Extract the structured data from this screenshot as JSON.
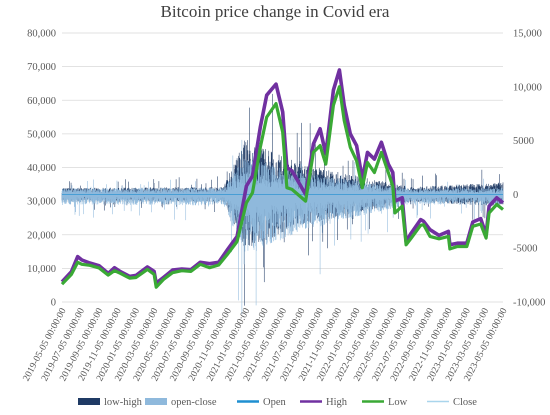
{
  "chart_data": {
    "type": "line",
    "title": "Bitcoin price change in Covid era",
    "y_left": {
      "min": 0,
      "max": 80000,
      "step": 10000,
      "ticks": [
        "0",
        "10,000",
        "20,000",
        "30,000",
        "40,000",
        "50,000",
        "60,000",
        "70,000",
        "80,000"
      ]
    },
    "y_right": {
      "min": -10000,
      "max": 15000,
      "step": 5000,
      "ticks": [
        "-10,000",
        "-5000",
        "0",
        "5000",
        "10,000",
        "15,000"
      ]
    },
    "x_ticks": [
      "2019-05-05 00:00:00",
      "2019-07-05 00:00:00",
      "2019-09-05 00:00:00",
      "2019-11-05 00:00:00",
      "2020-01-05 00:00:00",
      "2020-03-05 00:00:00",
      "2020-05-05 00:00:00",
      "2020-07-05 00:00:00",
      "2020-09-05 00:00:00",
      "2020-11-05 00:00:00",
      "2021-01-05 00:00:00",
      "2021-03-05 00:00:00",
      "2021-05-05 00:00:00",
      "2021-07-05 00:00:00",
      "2021-09-05 00:00:00",
      "2021-11-05 00:00:00",
      "2022-01-05 00:00:00",
      "2022-03-05 00:00:00",
      "2022-05-05 00:00:00",
      "2022-07-05 00:00:00",
      "2022-09-05 00:00:00",
      "2022-11-05 00:00:00",
      "2023-01-05 00:00:00",
      "2023-03-05 00:00:00",
      "2023-05-05 00:00:00"
    ],
    "grid": true,
    "legend_position": "bottom",
    "legend": [
      {
        "name": "low-high",
        "color": "#1f3a64"
      },
      {
        "name": "open-close",
        "color": "#8fb9dc"
      },
      {
        "name": "Open",
        "color": "#1f8fd1"
      },
      {
        "name": "High",
        "color": "#7030a0"
      },
      {
        "name": "Low",
        "color": "#3aa935"
      },
      {
        "name": "Close",
        "color": "#a9d5ec"
      }
    ],
    "series": [
      {
        "name": "High",
        "axis": "left",
        "color": "#7030a0",
        "x": [
          "2019-05-05",
          "2019-06-05",
          "2019-06-26",
          "2019-07-10",
          "2019-08-05",
          "2019-09-05",
          "2019-10-05",
          "2019-10-26",
          "2019-11-15",
          "2019-12-15",
          "2020-01-05",
          "2020-02-12",
          "2020-03-05",
          "2020-03-12",
          "2020-04-05",
          "2020-05-05",
          "2020-06-05",
          "2020-07-05",
          "2020-08-05",
          "2020-09-05",
          "2020-10-05",
          "2020-11-05",
          "2020-12-05",
          "2021-01-05",
          "2021-01-25",
          "2021-02-20",
          "2021-03-13",
          "2021-04-13",
          "2021-05-05",
          "2021-05-19",
          "2021-06-05",
          "2021-07-20",
          "2021-08-15",
          "2021-09-06",
          "2021-09-25",
          "2021-10-20",
          "2021-11-09",
          "2021-11-25",
          "2021-12-15",
          "2022-01-05",
          "2022-01-24",
          "2022-02-10",
          "2022-03-05",
          "2022-03-28",
          "2022-04-20",
          "2022-05-05",
          "2022-05-12",
          "2022-06-05",
          "2022-06-18",
          "2022-07-05",
          "2022-08-05",
          "2022-08-15",
          "2022-09-05",
          "2022-10-05",
          "2022-11-05",
          "2022-11-10",
          "2022-12-05",
          "2023-01-05",
          "2023-01-25",
          "2023-02-20",
          "2023-03-10",
          "2023-03-20",
          "2023-04-14",
          "2023-05-05"
        ],
        "values": [
          6000,
          9000,
          13500,
          12500,
          11600,
          10800,
          8500,
          10200,
          9000,
          7600,
          7900,
          10400,
          9100,
          5600,
          7300,
          9500,
          9800,
          9600,
          11800,
          11400,
          11800,
          15800,
          19500,
          34500,
          37500,
          52000,
          61500,
          64800,
          56500,
          40000,
          39000,
          32000,
          47000,
          51500,
          44000,
          63000,
          69000,
          58500,
          50000,
          46500,
          36500,
          44500,
          42500,
          47500,
          41000,
          38500,
          30000,
          31000,
          18000,
          20500,
          24500,
          24000,
          21500,
          19800,
          21000,
          17000,
          17500,
          17500,
          23800,
          24800,
          20000,
          28500,
          31000,
          29500
        ]
      },
      {
        "name": "Low",
        "axis": "left",
        "color": "#3aa935",
        "x": [
          "2019-05-05",
          "2019-06-05",
          "2019-06-26",
          "2019-07-10",
          "2019-08-05",
          "2019-09-05",
          "2019-10-05",
          "2019-10-26",
          "2019-11-15",
          "2019-12-15",
          "2020-01-05",
          "2020-02-12",
          "2020-03-05",
          "2020-03-12",
          "2020-04-05",
          "2020-05-05",
          "2020-06-05",
          "2020-07-05",
          "2020-08-05",
          "2020-09-05",
          "2020-10-05",
          "2020-11-05",
          "2020-12-05",
          "2021-01-05",
          "2021-01-25",
          "2021-02-20",
          "2021-03-13",
          "2021-04-13",
          "2021-05-05",
          "2021-05-19",
          "2021-06-05",
          "2021-07-20",
          "2021-08-15",
          "2021-09-06",
          "2021-09-25",
          "2021-10-20",
          "2021-11-09",
          "2021-11-25",
          "2021-12-15",
          "2022-01-05",
          "2022-01-24",
          "2022-02-10",
          "2022-03-05",
          "2022-03-28",
          "2022-04-20",
          "2022-05-05",
          "2022-05-12",
          "2022-06-05",
          "2022-06-18",
          "2022-07-05",
          "2022-08-05",
          "2022-08-15",
          "2022-09-05",
          "2022-10-05",
          "2022-11-05",
          "2022-11-10",
          "2022-12-05",
          "2023-01-05",
          "2023-01-25",
          "2023-02-20",
          "2023-03-10",
          "2023-03-20",
          "2023-04-14",
          "2023-05-05"
        ],
        "values": [
          5300,
          8200,
          11800,
          11200,
          10900,
          10100,
          8000,
          9300,
          8500,
          7100,
          7300,
          9700,
          8200,
          4400,
          6700,
          8700,
          9300,
          9100,
          11200,
          10200,
          11000,
          14400,
          18000,
          29500,
          32500,
          46000,
          55000,
          59000,
          50500,
          34000,
          33500,
          30000,
          44500,
          46500,
          41000,
          58500,
          64000,
          54000,
          46000,
          42000,
          34000,
          41500,
          38500,
          44500,
          38500,
          34500,
          26500,
          28500,
          17000,
          19000,
          22800,
          23000,
          19500,
          18800,
          19500,
          15800,
          16500,
          16500,
          22500,
          23200,
          19000,
          26500,
          29000,
          27500
        ]
      }
    ],
    "spread_series_right_axis": [
      {
        "name": "low-high",
        "color": "#1f3a64",
        "baseline": 0,
        "typical_amplitude": [
          [
            2019,
            500
          ],
          [
            2020.8,
            600
          ],
          [
            2021.0,
            4500
          ],
          [
            2021.5,
            2500
          ],
          [
            2022.5,
            600
          ],
          [
            2023.4,
            1000
          ]
        ]
      },
      {
        "name": "open-close",
        "color": "#8fb9dc",
        "baseline": 0,
        "typical_amplitude": [
          [
            2019,
            800
          ],
          [
            2020.8,
            900
          ],
          [
            2021.0,
            5000
          ],
          [
            2021.5,
            3000
          ],
          [
            2022.5,
            800
          ],
          [
            2023.4,
            900
          ]
        ]
      }
    ]
  }
}
